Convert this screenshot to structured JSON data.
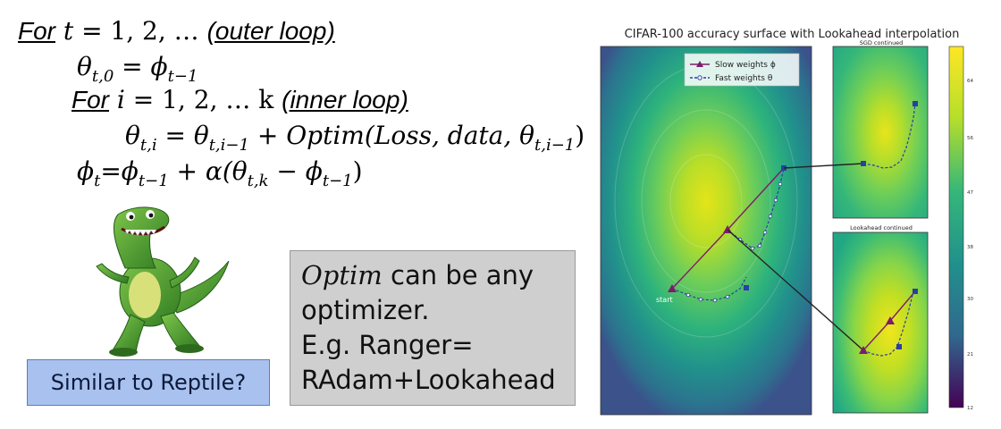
{
  "algorithm": {
    "outer_for": "For",
    "outer_var": "t",
    "outer_range": " = 1, 2, …",
    "outer_note": "(outer loop)",
    "init_lhs": "θ",
    "init_sub": "t,0",
    "init_eq": " = ϕ",
    "init_rhs_sub": "t−1",
    "inner_for": "For",
    "inner_var": "i",
    "inner_range": " = 1, 2, … k",
    "inner_note": "(inner loop)",
    "update_lhs": "θ",
    "update_lhs_sub": "t,i",
    "update_eq": " = θ",
    "update_prev_sub": "t,i−1",
    "update_plus": " + Optim(Loss, data, θ",
    "update_arg_sub": "t,i−1",
    "update_close": ")",
    "phi_lhs": "ϕ",
    "phi_lhs_sub": "t",
    "phi_eq": "=ϕ",
    "phi_prev_sub": "t−1",
    "phi_alpha": " + α(θ",
    "phi_theta_sub": "t,k",
    "phi_minus": " − ϕ",
    "phi_last_sub": "t−1",
    "phi_close": ")"
  },
  "reptile_box": {
    "text": "Similar to Reptile?"
  },
  "optim_box": {
    "line1_math": "Optim",
    "line1_text": " can be any",
    "line2": "optimizer.",
    "line3": "E.g. Ranger=",
    "line4": "RAdam+Lookahead"
  },
  "figure": {
    "title": "CIFAR-100 accuracy surface with Lookahead interpolation",
    "panel_top_title": "SGD continued",
    "panel_bottom_title": "Lookahead continued",
    "legend": [
      "Slow weights ϕ",
      "Fast weights θ"
    ],
    "start_label": "start",
    "colorbar_ticks": [
      "64",
      "56",
      "47",
      "38",
      "30",
      "21",
      "12"
    ],
    "colors": {
      "slow": "#7d1d6a",
      "fast": "#2a3fa0",
      "bridge": "#222222"
    }
  }
}
